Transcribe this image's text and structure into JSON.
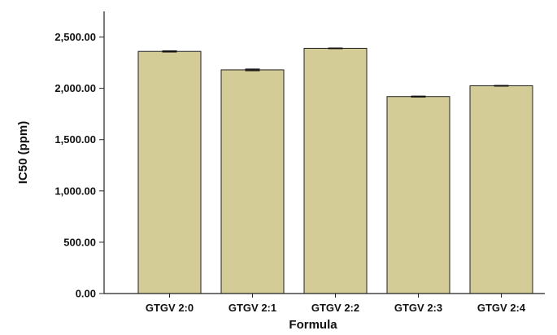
{
  "chart_data": {
    "type": "bar",
    "title": "",
    "xlabel": "Formula",
    "ylabel": "IC50 (ppm)",
    "categories": [
      "GTGV 2:0",
      "GTGV 2:1",
      "GTGV 2:2",
      "GTGV 2:3",
      "GTGV 2:4"
    ],
    "values": [
      2360,
      2180,
      2390,
      1920,
      2025
    ],
    "errors": [
      5,
      8,
      3,
      4,
      3
    ],
    "ylim": [
      0,
      2750
    ],
    "yticks": [
      0,
      500,
      1000,
      1500,
      2000,
      2500
    ],
    "ytick_labels": [
      "0.00",
      "500.00",
      "1,000.00",
      "1,500.00",
      "2,000.00",
      "2,500.00"
    ],
    "grid": false,
    "bar_color": "#d4cc97",
    "bar_edge_color": "#222222"
  }
}
